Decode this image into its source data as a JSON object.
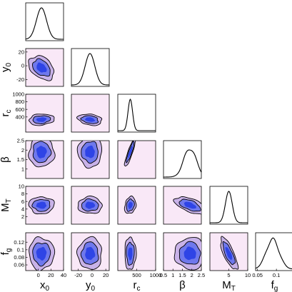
{
  "chart_data": {
    "type": "corner",
    "params": [
      {
        "key": "x0",
        "label": "x",
        "sub": "0",
        "range": [
          -20,
          40
        ],
        "xticks": [
          0,
          20,
          40
        ],
        "yticks": null,
        "mean": 5,
        "sd": 8
      },
      {
        "key": "y0",
        "label": "y",
        "sub": "0",
        "range": [
          -30,
          25
        ],
        "xticks": [
          -20,
          0,
          20
        ],
        "yticks": [
          -20,
          0,
          20
        ],
        "mean": -3,
        "sd": 7
      },
      {
        "key": "rc",
        "label": "r",
        "sub": "c",
        "range": [
          0,
          1000
        ],
        "xticks": [
          500,
          1000
        ],
        "yticks": [
          400,
          600,
          800,
          1000
        ],
        "mean": 330,
        "sd": 60
      },
      {
        "key": "beta",
        "label": "β",
        "sub": "",
        "range": [
          0.5,
          2.5
        ],
        "xticks": [
          0.5,
          1,
          1.5,
          2,
          2.5
        ],
        "yticks": [
          1,
          1.5,
          2,
          2.5
        ],
        "mean": 1.9,
        "sd": 0.32
      },
      {
        "key": "MT",
        "label": "M",
        "sub": "T",
        "range": [
          0,
          10
        ],
        "xticks": [
          5,
          10
        ],
        "yticks": [
          2,
          4,
          6,
          8,
          10
        ],
        "mean": 5,
        "sd": 0.9
      },
      {
        "key": "fg",
        "label": "f",
        "sub": "g",
        "range": [
          0.045,
          0.145
        ],
        "xticks": [
          0.05,
          0.1
        ],
        "yticks": [
          0.06,
          0.08,
          0.1,
          0.12
        ],
        "mean": 0.09,
        "sd": 0.017
      }
    ],
    "correlations": [
      {
        "pair": [
          "x0",
          "y0"
        ],
        "rho": -0.35
      },
      {
        "pair": [
          "x0",
          "rc"
        ],
        "rho": 0.15
      },
      {
        "pair": [
          "y0",
          "rc"
        ],
        "rho": -0.25
      },
      {
        "pair": [
          "rc",
          "beta"
        ],
        "rho": 0.9
      },
      {
        "pair": [
          "beta",
          "MT"
        ],
        "rho": -0.55
      },
      {
        "pair": [
          "MT",
          "fg"
        ],
        "rho": -0.75
      },
      {
        "pair": [
          "rc",
          "MT"
        ],
        "rho": 0.2
      }
    ],
    "colors": {
      "background": "#f9e8f7",
      "inner": "#2e44e6",
      "middle": "#6f78ec",
      "outer": "#c8b2e8",
      "line": "#000000"
    }
  }
}
